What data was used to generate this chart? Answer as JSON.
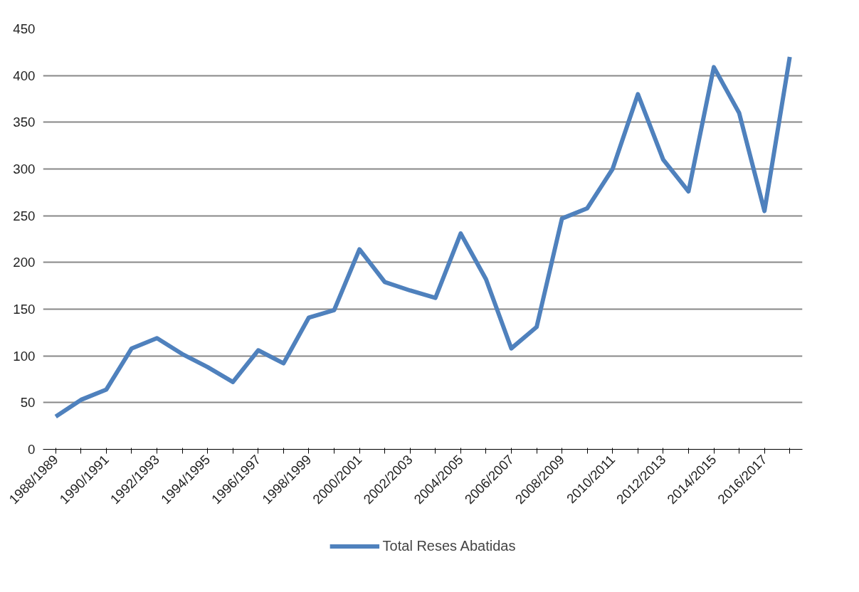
{
  "chart_data": {
    "type": "line",
    "categories": [
      "1988/1989",
      null,
      "1990/1991",
      null,
      "1992/1993",
      null,
      "1994/1995",
      null,
      "1996/1997",
      null,
      "1998/1999",
      null,
      "2000/2001",
      null,
      "2002/2003",
      null,
      "2004/2005",
      null,
      "2006/2007",
      null,
      "2008/2009",
      null,
      "2010/2011",
      null,
      "2012/2013",
      null,
      "2014/2015",
      null,
      "2016/2017",
      null
    ],
    "series": [
      {
        "name": "Total Reses Abatidas",
        "color": "#4f81bd",
        "values": [
          35,
          53,
          64,
          108,
          119,
          102,
          88,
          72,
          106,
          92,
          141,
          149,
          214,
          179,
          170,
          162,
          231,
          182,
          108,
          131,
          247,
          258,
          300,
          380,
          310,
          276,
          409,
          360,
          255,
          420
        ]
      }
    ],
    "ylim": [
      0,
      450
    ],
    "yticks": [
      0,
      50,
      100,
      150,
      200,
      250,
      300,
      350,
      400,
      450
    ],
    "grid": "y",
    "legend": "bottom",
    "marker": "none",
    "line_style": "solid"
  }
}
